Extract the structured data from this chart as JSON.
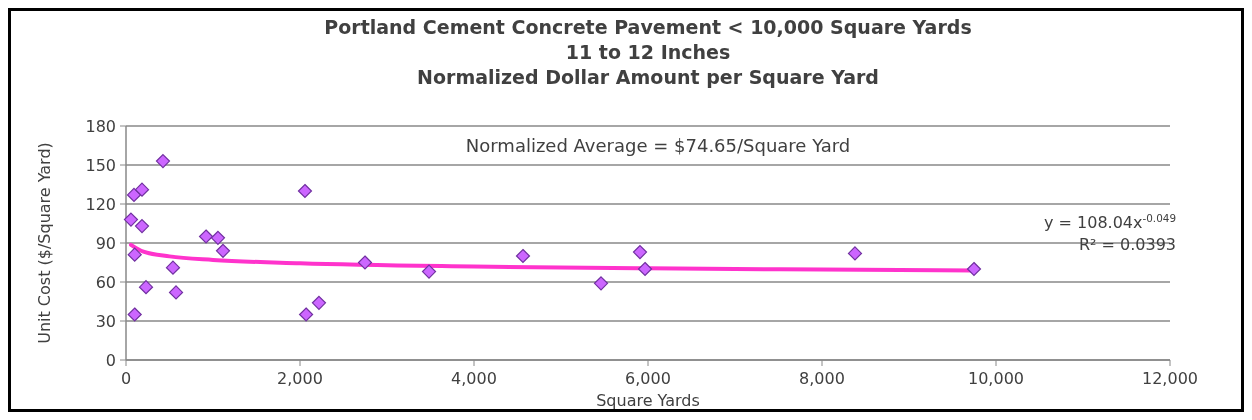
{
  "chart_data": {
    "type": "scatter",
    "title": "Portland Cement Concrete Pavement < 10,000 Square Yards\n11 to 12 Inches\nNormalized Dollar Amount per Square Yard",
    "xlabel": "Square Yards",
    "ylabel": "Unit Cost ($/Square Yard)",
    "xlim": [
      0,
      12000
    ],
    "xticks": [
      {
        "value": 0,
        "label": "0"
      },
      {
        "value": 2000,
        "label": "2,000"
      },
      {
        "value": 4000,
        "label": "4,000"
      },
      {
        "value": 6000,
        "label": "6,000"
      },
      {
        "value": 8000,
        "label": "8,000"
      },
      {
        "value": 10000,
        "label": "10,000"
      },
      {
        "value": 12000,
        "label": "12,000"
      }
    ],
    "ylim": [
      0,
      180
    ],
    "yticks": [
      0,
      30,
      60,
      90,
      120,
      150,
      180
    ],
    "grid": "y",
    "annotations": [
      "Normalized Average = $74.65/Square Yard",
      "y = 108.04x$^{-0.049}$",
      "R² = 0.0393"
    ],
    "series": [
      {
        "color": "#cc66ff",
        "marker": "diamond",
        "x": [
          57,
          92,
          184,
          100,
          184,
          100,
          425,
          230,
          540,
          575,
          920,
          1057,
          1115,
          2057,
          2070,
          2218,
          2747,
          3483,
          4563,
          5460,
          5908,
          5966,
          8379,
          9747
        ],
        "values": [
          108,
          127,
          131,
          81,
          103,
          35,
          153,
          56,
          71,
          52,
          95,
          94,
          84,
          130,
          35,
          44,
          75,
          68,
          80,
          59,
          83,
          70,
          82,
          70
        ]
      },
      {
        "type": "line",
        "color": "#ff33cc",
        "marker": "none",
        "x": [
          57,
          200,
          500,
          1000,
          2000,
          4000,
          6000,
          8000,
          9747
        ],
        "values": [
          88.6,
          83.3,
          79.7,
          77.0,
          74.4,
          71.9,
          70.5,
          69.6,
          68.9
        ]
      }
    ]
  }
}
